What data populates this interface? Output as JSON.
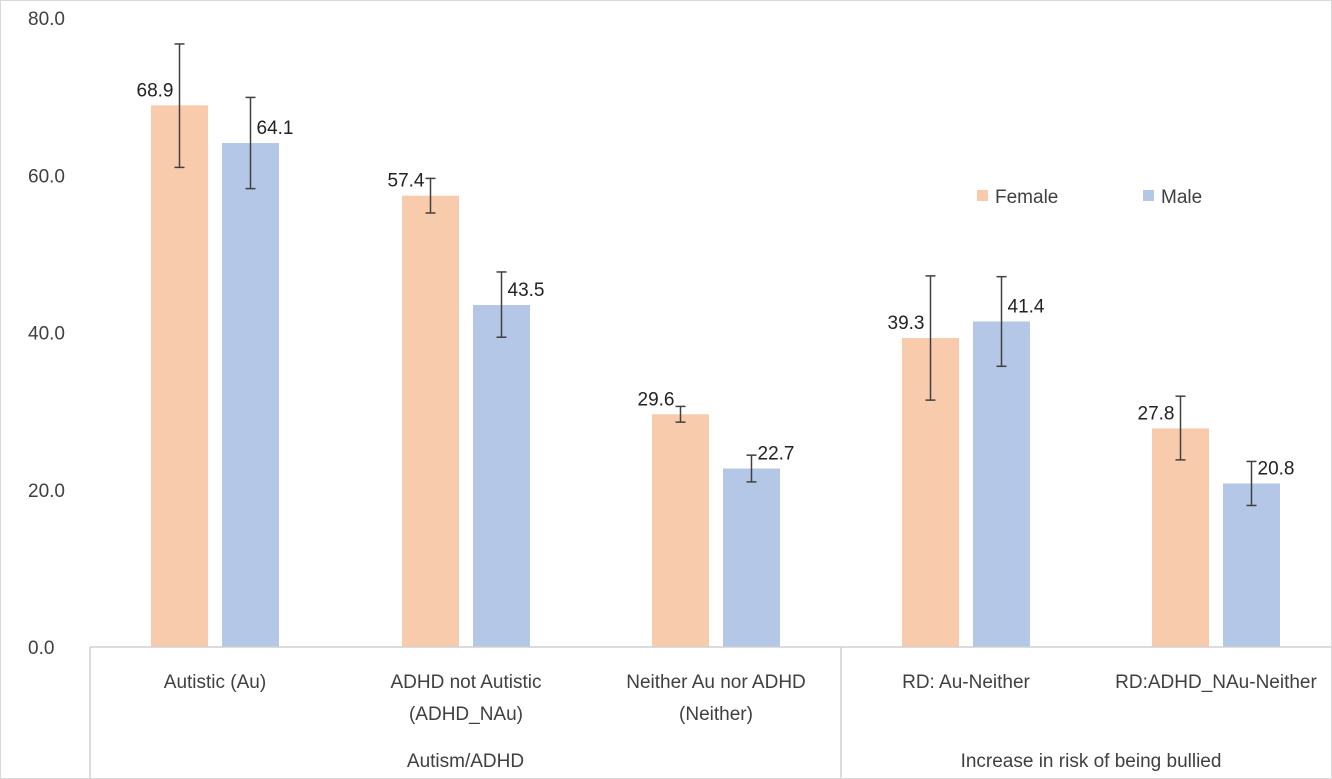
{
  "chart_data": {
    "type": "bar",
    "categories": [
      [
        "Autistic (Au)"
      ],
      [
        "ADHD not Autistic",
        "(ADHD_NAu)"
      ],
      [
        "Neither Au nor ADHD",
        "(Neither)"
      ],
      [
        "RD: Au-Neither"
      ],
      [
        "RD:ADHD_NAu-Neither"
      ]
    ],
    "groups": [
      {
        "label": "Autism/ADHD",
        "span": [
          0,
          2
        ]
      },
      {
        "label": "Increase in risk of being bullied",
        "span": [
          3,
          4
        ]
      }
    ],
    "series": [
      {
        "name": "Female",
        "color": "#f8cbad",
        "values": [
          68.9,
          57.4,
          29.6,
          39.3,
          27.8
        ],
        "err_low": [
          61.0,
          55.2,
          28.6,
          31.4,
          23.8
        ],
        "err_high": [
          76.7,
          59.6,
          30.6,
          47.2,
          31.9
        ],
        "labels": [
          "68.9",
          "57.4",
          "29.6",
          "39.3",
          "27.8"
        ]
      },
      {
        "name": "Male",
        "color": "#b4c7e7",
        "values": [
          64.1,
          43.5,
          22.7,
          41.4,
          20.8
        ],
        "err_low": [
          58.3,
          39.4,
          21.0,
          35.7,
          18.0
        ],
        "err_high": [
          69.9,
          47.7,
          24.4,
          47.1,
          23.6
        ],
        "labels": [
          "64.1",
          "43.5",
          "22.7",
          "41.4",
          "20.8"
        ]
      }
    ],
    "yticks": [
      "80.0",
      "60.0",
      "40.0",
      "20.0",
      "0.0"
    ],
    "ytick_values": [
      80,
      60,
      40,
      20,
      0
    ],
    "ylim": [
      0,
      80
    ],
    "grid": false,
    "legend": "top-right",
    "title": "",
    "xlabel": "",
    "ylabel": ""
  }
}
